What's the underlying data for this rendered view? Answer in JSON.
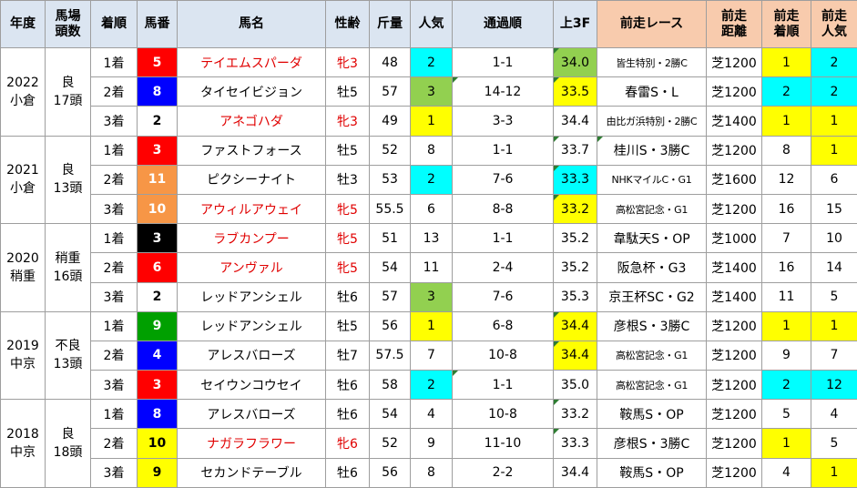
{
  "headers": {
    "year": "年度",
    "track": [
      "馬場",
      "頭数"
    ],
    "rank": "着順",
    "gate": "馬番",
    "name": "馬名",
    "sexage": "性齢",
    "weight": "斤量",
    "pop": "人気",
    "passing": "通過順",
    "last3f": "上3F",
    "prevrace": "前走レース",
    "prevdist": [
      "前走",
      "距離"
    ],
    "prevrank": [
      "前走",
      "着順"
    ],
    "prevpop": [
      "前走",
      "人気"
    ]
  },
  "colors": {
    "header_bg": "#dbe5f1",
    "prev_header_bg": "#f8cbad",
    "highlight_yellow": "#ffff00",
    "highlight_cyan": "#00ffff",
    "highlight_green": "#92d050",
    "text_red": "#e00000"
  },
  "years": [
    {
      "year": "2022",
      "venue": "小倉",
      "cond": "良",
      "heads": "17頭",
      "rows": [
        {
          "rank": "1着",
          "gate": "5",
          "gate_color": "red",
          "name": "テイエムスパーダ",
          "name_red": true,
          "sexage": "牝3",
          "weight": "48",
          "pop": "2",
          "pop_hl": "c",
          "passing": "1-1",
          "passing_mark": false,
          "l3f": "34.0",
          "l3f_hl": "g",
          "l3f_mark": true,
          "prev": "皆生特別・2勝C",
          "prev_small": true,
          "prev_mark": false,
          "dist": "芝1200",
          "prank": "1",
          "prank_hl": "y",
          "ppop": "2",
          "ppop_hl": "c"
        },
        {
          "rank": "2着",
          "gate": "8",
          "gate_color": "blue",
          "name": "タイセイビジョン",
          "name_red": false,
          "sexage": "牡5",
          "weight": "57",
          "pop": "3",
          "pop_hl": "g",
          "passing": "14-12",
          "passing_mark": true,
          "l3f": "33.5",
          "l3f_hl": "y",
          "l3f_mark": true,
          "prev": "春雷S・L",
          "prev_small": false,
          "prev_mark": false,
          "dist": "芝1200",
          "prank": "2",
          "prank_hl": "c",
          "ppop": "2",
          "ppop_hl": "c"
        },
        {
          "rank": "3着",
          "gate": "2",
          "gate_color": "white",
          "name": "アネゴハダ",
          "name_red": true,
          "sexage": "牝3",
          "weight": "49",
          "pop": "1",
          "pop_hl": "y",
          "passing": "3-3",
          "passing_mark": false,
          "l3f": "34.4",
          "l3f_hl": "",
          "l3f_mark": false,
          "prev": "由比ガ浜特別・2勝C",
          "prev_small": true,
          "prev_mark": false,
          "dist": "芝1400",
          "prank": "1",
          "prank_hl": "y",
          "ppop": "1",
          "ppop_hl": "y"
        }
      ]
    },
    {
      "year": "2021",
      "venue": "小倉",
      "cond": "良",
      "heads": "13頭",
      "rows": [
        {
          "rank": "1着",
          "gate": "3",
          "gate_color": "red",
          "name": "ファストフォース",
          "name_red": false,
          "sexage": "牡5",
          "weight": "52",
          "pop": "8",
          "pop_hl": "",
          "passing": "1-1",
          "passing_mark": false,
          "l3f": "33.7",
          "l3f_hl": "",
          "l3f_mark": true,
          "prev": "桂川S・3勝C",
          "prev_small": false,
          "prev_mark": true,
          "dist": "芝1200",
          "prank": "8",
          "prank_hl": "",
          "ppop": "1",
          "ppop_hl": "y"
        },
        {
          "rank": "2着",
          "gate": "11",
          "gate_color": "orange",
          "name": "ピクシーナイト",
          "name_red": false,
          "sexage": "牡3",
          "weight": "53",
          "pop": "2",
          "pop_hl": "c",
          "passing": "7-6",
          "passing_mark": false,
          "l3f": "33.3",
          "l3f_hl": "c",
          "l3f_mark": true,
          "prev": "NHKマイルC・G1",
          "prev_small": true,
          "prev_mark": false,
          "dist": "芝1600",
          "prank": "12",
          "prank_hl": "",
          "ppop": "6",
          "ppop_hl": ""
        },
        {
          "rank": "3着",
          "gate": "10",
          "gate_color": "orange",
          "name": "アウィルアウェイ",
          "name_red": true,
          "sexage": "牝5",
          "weight": "55.5",
          "pop": "6",
          "pop_hl": "",
          "passing": "8-8",
          "passing_mark": false,
          "l3f": "33.2",
          "l3f_hl": "y",
          "l3f_mark": true,
          "prev": "高松宮記念・G1",
          "prev_small": true,
          "prev_mark": false,
          "dist": "芝1200",
          "prank": "16",
          "prank_hl": "",
          "ppop": "15",
          "ppop_hl": ""
        }
      ]
    },
    {
      "year": "2020",
      "venue": "稍重",
      "cond": "稍重",
      "heads": "16頭",
      "rows": [
        {
          "rank": "1着",
          "gate": "3",
          "gate_color": "black",
          "name": "ラブカンプー",
          "name_red": true,
          "sexage": "牝5",
          "weight": "51",
          "pop": "13",
          "pop_hl": "",
          "passing": "1-1",
          "passing_mark": false,
          "l3f": "35.2",
          "l3f_hl": "",
          "l3f_mark": false,
          "prev": "韋駄天S・OP",
          "prev_small": false,
          "prev_mark": false,
          "dist": "芝1000",
          "prank": "7",
          "prank_hl": "",
          "ppop": "10",
          "ppop_hl": ""
        },
        {
          "rank": "2着",
          "gate": "6",
          "gate_color": "red",
          "name": "アンヴァル",
          "name_red": true,
          "sexage": "牝5",
          "weight": "54",
          "pop": "11",
          "pop_hl": "",
          "passing": "2-4",
          "passing_mark": false,
          "l3f": "35.2",
          "l3f_hl": "",
          "l3f_mark": false,
          "prev": "阪急杯・G3",
          "prev_small": false,
          "prev_mark": false,
          "dist": "芝1400",
          "prank": "16",
          "prank_hl": "",
          "ppop": "14",
          "ppop_hl": ""
        },
        {
          "rank": "3着",
          "gate": "2",
          "gate_color": "white",
          "name": "レッドアンシェル",
          "name_red": false,
          "sexage": "牡6",
          "weight": "57",
          "pop": "3",
          "pop_hl": "g",
          "passing": "7-6",
          "passing_mark": false,
          "l3f": "35.3",
          "l3f_hl": "",
          "l3f_mark": false,
          "prev": "京王杯SC・G2",
          "prev_small": false,
          "prev_mark": false,
          "dist": "芝1400",
          "prank": "11",
          "prank_hl": "",
          "ppop": "5",
          "ppop_hl": ""
        }
      ]
    },
    {
      "year": "2019",
      "venue": "中京",
      "cond": "不良",
      "heads": "13頭",
      "rows": [
        {
          "rank": "1着",
          "gate": "9",
          "gate_color": "green",
          "name": "レッドアンシェル",
          "name_red": false,
          "sexage": "牡5",
          "weight": "56",
          "pop": "1",
          "pop_hl": "y",
          "passing": "6-8",
          "passing_mark": false,
          "l3f": "34.4",
          "l3f_hl": "y",
          "l3f_mark": true,
          "prev": "彦根S・3勝C",
          "prev_small": false,
          "prev_mark": false,
          "dist": "芝1200",
          "prank": "1",
          "prank_hl": "y",
          "ppop": "1",
          "ppop_hl": "y"
        },
        {
          "rank": "2着",
          "gate": "4",
          "gate_color": "blue",
          "name": "アレスバローズ",
          "name_red": false,
          "sexage": "牡7",
          "weight": "57.5",
          "pop": "7",
          "pop_hl": "",
          "passing": "10-8",
          "passing_mark": false,
          "l3f": "34.4",
          "l3f_hl": "y",
          "l3f_mark": true,
          "prev": "高松宮記念・G1",
          "prev_small": true,
          "prev_mark": false,
          "dist": "芝1200",
          "prank": "9",
          "prank_hl": "",
          "ppop": "7",
          "ppop_hl": ""
        },
        {
          "rank": "3着",
          "gate": "3",
          "gate_color": "red",
          "name": "セイウンコウセイ",
          "name_red": false,
          "sexage": "牡6",
          "weight": "58",
          "pop": "2",
          "pop_hl": "c",
          "passing": "1-1",
          "passing_mark": true,
          "l3f": "35.0",
          "l3f_hl": "",
          "l3f_mark": false,
          "prev": "高松宮記念・G1",
          "prev_small": true,
          "prev_mark": false,
          "dist": "芝1200",
          "prank": "2",
          "prank_hl": "c",
          "ppop": "12",
          "ppop_hl": "c"
        }
      ]
    },
    {
      "year": "2018",
      "venue": "中京",
      "cond": "良",
      "heads": "18頭",
      "rows": [
        {
          "rank": "1着",
          "gate": "8",
          "gate_color": "blue",
          "name": "アレスバローズ",
          "name_red": false,
          "sexage": "牡6",
          "weight": "54",
          "pop": "4",
          "pop_hl": "",
          "passing": "10-8",
          "passing_mark": false,
          "l3f": "33.2",
          "l3f_hl": "",
          "l3f_mark": true,
          "prev": "鞍馬S・OP",
          "prev_small": false,
          "prev_mark": false,
          "dist": "芝1200",
          "prank": "5",
          "prank_hl": "",
          "ppop": "4",
          "ppop_hl": ""
        },
        {
          "rank": "2着",
          "gate": "10",
          "gate_color": "yellow",
          "name": "ナガラフラワー",
          "name_red": true,
          "sexage": "牝6",
          "weight": "52",
          "pop": "9",
          "pop_hl": "",
          "passing": "11-10",
          "passing_mark": false,
          "l3f": "33.3",
          "l3f_hl": "",
          "l3f_mark": true,
          "prev": "彦根S・3勝C",
          "prev_small": false,
          "prev_mark": false,
          "dist": "芝1200",
          "prank": "1",
          "prank_hl": "y",
          "ppop": "5",
          "ppop_hl": ""
        },
        {
          "rank": "3着",
          "gate": "9",
          "gate_color": "yellow",
          "name": "セカンドテーブル",
          "name_red": false,
          "sexage": "牡6",
          "weight": "56",
          "pop": "8",
          "pop_hl": "",
          "passing": "2-2",
          "passing_mark": false,
          "l3f": "34.4",
          "l3f_hl": "",
          "l3f_mark": false,
          "prev": "鞍馬S・OP",
          "prev_small": false,
          "prev_mark": false,
          "dist": "芝1200",
          "prank": "4",
          "prank_hl": "",
          "ppop": "1",
          "ppop_hl": "y"
        }
      ]
    }
  ]
}
